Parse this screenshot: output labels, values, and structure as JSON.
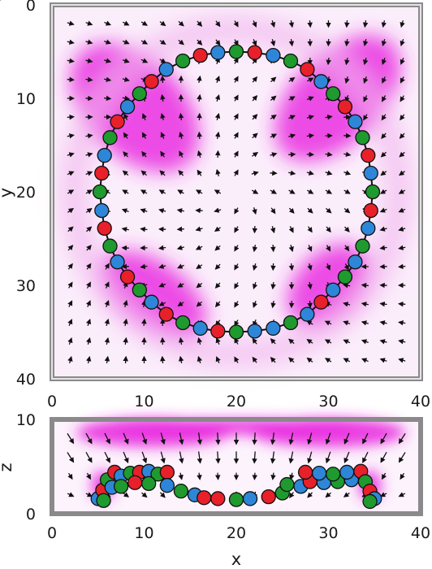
{
  "chart_data": [
    {
      "type": "scatter",
      "view": "top (x–y)",
      "xlabel": "",
      "ylabel": "y",
      "xlim": [
        0,
        40
      ],
      "ylim": [
        0,
        40
      ],
      "y_axis_inverted": true,
      "xticks": [
        "0",
        "10",
        "20",
        "30",
        "40"
      ],
      "yticks": [
        "0",
        "10",
        "20",
        "30",
        "40"
      ],
      "background": "magenta density field with black arrow vector field",
      "bead_colors": {
        "red": "#e8202a",
        "green": "#1f9a2e",
        "blue": "#2e86d8"
      },
      "beads": [
        {
          "x": 18.0,
          "y": 5.1,
          "color": "blue"
        },
        {
          "x": 20.0,
          "y": 5.0,
          "color": "green"
        },
        {
          "x": 22.0,
          "y": 5.1,
          "color": "red"
        },
        {
          "x": 24.0,
          "y": 5.4,
          "color": "blue"
        },
        {
          "x": 25.9,
          "y": 6.0,
          "color": "green"
        },
        {
          "x": 27.7,
          "y": 6.9,
          "color": "red"
        },
        {
          "x": 29.2,
          "y": 8.2,
          "color": "blue"
        },
        {
          "x": 30.5,
          "y": 9.5,
          "color": "green"
        },
        {
          "x": 31.8,
          "y": 10.9,
          "color": "red"
        },
        {
          "x": 32.9,
          "y": 12.5,
          "color": "blue"
        },
        {
          "x": 33.7,
          "y": 14.2,
          "color": "green"
        },
        {
          "x": 34.3,
          "y": 16.1,
          "color": "red"
        },
        {
          "x": 34.6,
          "y": 18.0,
          "color": "blue"
        },
        {
          "x": 34.8,
          "y": 20.0,
          "color": "green"
        },
        {
          "x": 34.6,
          "y": 22.0,
          "color": "red"
        },
        {
          "x": 34.3,
          "y": 23.9,
          "color": "blue"
        },
        {
          "x": 33.7,
          "y": 25.8,
          "color": "green"
        },
        {
          "x": 32.9,
          "y": 27.5,
          "color": "blue"
        },
        {
          "x": 31.8,
          "y": 29.1,
          "color": "green"
        },
        {
          "x": 30.5,
          "y": 30.5,
          "color": "blue"
        },
        {
          "x": 29.2,
          "y": 31.8,
          "color": "red"
        },
        {
          "x": 27.7,
          "y": 33.1,
          "color": "blue"
        },
        {
          "x": 25.9,
          "y": 34.0,
          "color": "green"
        },
        {
          "x": 24.0,
          "y": 34.6,
          "color": "blue"
        },
        {
          "x": 22.0,
          "y": 34.9,
          "color": "blue"
        },
        {
          "x": 20.0,
          "y": 35.0,
          "color": "green"
        },
        {
          "x": 18.0,
          "y": 34.9,
          "color": "red"
        },
        {
          "x": 16.1,
          "y": 34.6,
          "color": "blue"
        },
        {
          "x": 14.2,
          "y": 34.0,
          "color": "green"
        },
        {
          "x": 12.4,
          "y": 33.1,
          "color": "red"
        },
        {
          "x": 10.8,
          "y": 31.8,
          "color": "blue"
        },
        {
          "x": 9.5,
          "y": 30.5,
          "color": "green"
        },
        {
          "x": 8.2,
          "y": 29.1,
          "color": "red"
        },
        {
          "x": 7.1,
          "y": 27.5,
          "color": "blue"
        },
        {
          "x": 6.3,
          "y": 25.8,
          "color": "green"
        },
        {
          "x": 5.7,
          "y": 23.9,
          "color": "red"
        },
        {
          "x": 5.4,
          "y": 22.0,
          "color": "blue"
        },
        {
          "x": 5.2,
          "y": 20.0,
          "color": "green"
        },
        {
          "x": 5.4,
          "y": 18.0,
          "color": "red"
        },
        {
          "x": 5.7,
          "y": 16.1,
          "color": "blue"
        },
        {
          "x": 6.3,
          "y": 14.2,
          "color": "green"
        },
        {
          "x": 7.1,
          "y": 12.5,
          "color": "red"
        },
        {
          "x": 8.2,
          "y": 10.9,
          "color": "blue"
        },
        {
          "x": 9.5,
          "y": 9.5,
          "color": "green"
        },
        {
          "x": 10.8,
          "y": 8.2,
          "color": "red"
        },
        {
          "x": 12.4,
          "y": 6.9,
          "color": "blue"
        },
        {
          "x": 14.2,
          "y": 6.0,
          "color": "green"
        },
        {
          "x": 16.1,
          "y": 5.4,
          "color": "red"
        }
      ]
    },
    {
      "type": "scatter",
      "view": "side (x–z)",
      "xlabel": "x",
      "ylabel": "z",
      "xlim": [
        0,
        40
      ],
      "ylim": [
        0,
        10
      ],
      "xticks": [
        "0",
        "10",
        "20",
        "30",
        "40"
      ],
      "yticks": [
        "0",
        "10"
      ],
      "beads": [
        {
          "x": 5.0,
          "z": 1.6,
          "color": "blue"
        },
        {
          "x": 5.5,
          "z": 2.5,
          "color": "red"
        },
        {
          "x": 6.0,
          "z": 3.6,
          "color": "green"
        },
        {
          "x": 6.8,
          "z": 4.4,
          "color": "red"
        },
        {
          "x": 7.5,
          "z": 4.0,
          "color": "blue"
        },
        {
          "x": 8.5,
          "z": 4.3,
          "color": "green"
        },
        {
          "x": 9.5,
          "z": 4.4,
          "color": "red"
        },
        {
          "x": 10.5,
          "z": 4.5,
          "color": "blue"
        },
        {
          "x": 11.5,
          "z": 4.2,
          "color": "green"
        },
        {
          "x": 12.5,
          "z": 4.4,
          "color": "red"
        },
        {
          "x": 6.5,
          "z": 2.8,
          "color": "blue"
        },
        {
          "x": 7.5,
          "z": 2.9,
          "color": "green"
        },
        {
          "x": 9.0,
          "z": 3.3,
          "color": "red"
        },
        {
          "x": 10.5,
          "z": 3.2,
          "color": "green"
        },
        {
          "x": 12.5,
          "z": 3.0,
          "color": "blue"
        },
        {
          "x": 14.0,
          "z": 2.4,
          "color": "green"
        },
        {
          "x": 15.5,
          "z": 2.0,
          "color": "blue"
        },
        {
          "x": 16.5,
          "z": 1.7,
          "color": "red"
        },
        {
          "x": 18.0,
          "z": 1.6,
          "color": "red"
        },
        {
          "x": 20.0,
          "z": 1.5,
          "color": "green"
        },
        {
          "x": 21.5,
          "z": 1.6,
          "color": "blue"
        },
        {
          "x": 23.5,
          "z": 1.8,
          "color": "red"
        },
        {
          "x": 25.0,
          "z": 2.2,
          "color": "green"
        },
        {
          "x": 25.5,
          "z": 3.1,
          "color": "green"
        },
        {
          "x": 27.0,
          "z": 2.9,
          "color": "blue"
        },
        {
          "x": 28.0,
          "z": 3.4,
          "color": "red"
        },
        {
          "x": 29.5,
          "z": 3.3,
          "color": "blue"
        },
        {
          "x": 31.0,
          "z": 3.4,
          "color": "green"
        },
        {
          "x": 32.5,
          "z": 3.6,
          "color": "blue"
        },
        {
          "x": 27.5,
          "z": 4.4,
          "color": "red"
        },
        {
          "x": 29.0,
          "z": 4.3,
          "color": "blue"
        },
        {
          "x": 30.5,
          "z": 4.2,
          "color": "green"
        },
        {
          "x": 32.0,
          "z": 4.4,
          "color": "blue"
        },
        {
          "x": 33.5,
          "z": 4.5,
          "color": "red"
        },
        {
          "x": 34.0,
          "z": 3.4,
          "color": "green"
        },
        {
          "x": 34.5,
          "z": 2.4,
          "color": "red"
        },
        {
          "x": 35.0,
          "z": 1.6,
          "color": "blue"
        },
        {
          "x": 5.6,
          "z": 1.4,
          "color": "green"
        },
        {
          "x": 34.5,
          "z": 1.3,
          "color": "green"
        }
      ]
    }
  ]
}
